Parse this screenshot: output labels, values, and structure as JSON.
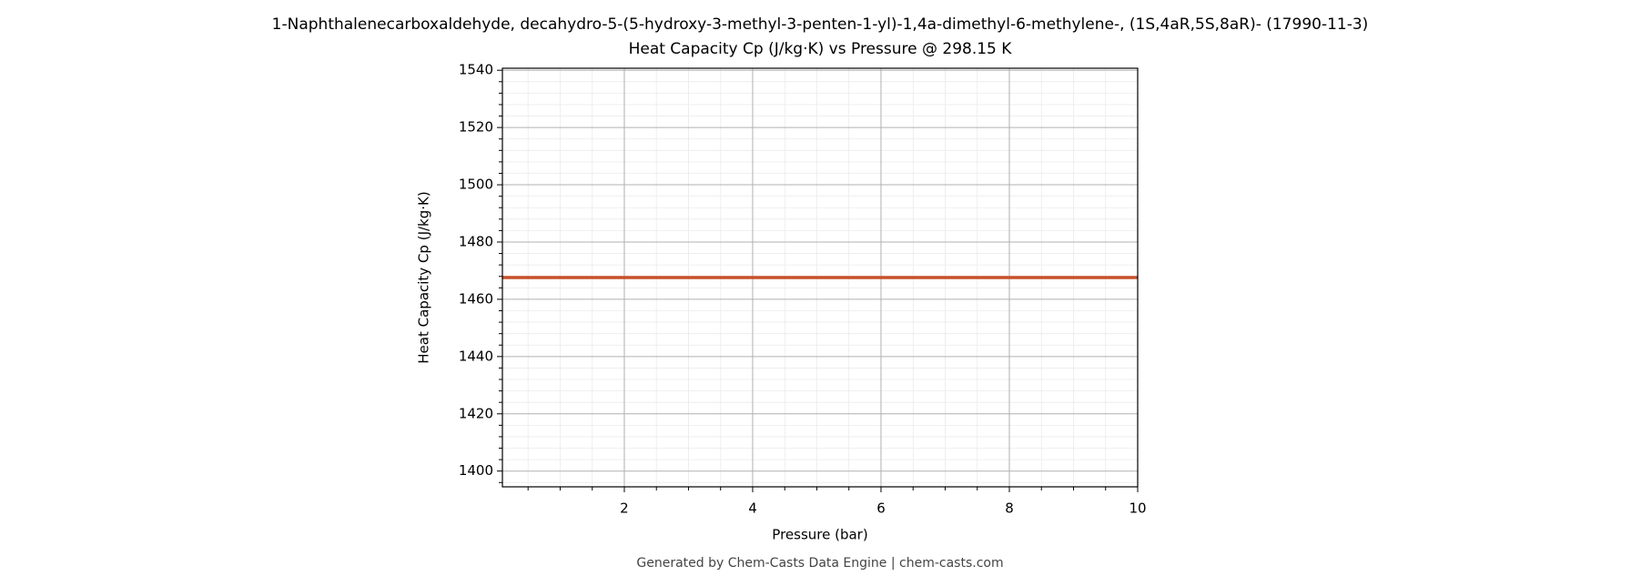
{
  "chart_data": {
    "type": "line",
    "title": "1-Naphthalenecarboxaldehyde, decahydro-5-(5-hydroxy-3-methyl-3-penten-1-yl)-1,4a-dimethyl-6-methylene-, (1S,4aR,5S,8aR)- (17990-11-3)",
    "subtitle": "Heat Capacity Cp (J/kg·K) vs Pressure @ 298.15 K",
    "x_label": "Pressure (bar)",
    "y_label": "Heat Capacity Cp (J/kg·K)",
    "footer": "Generated by Chem-Casts Data Engine | chem-casts.com",
    "x": [
      0.1,
      10
    ],
    "series": [
      {
        "name": "Cp",
        "color": "#c8502a",
        "values": [
          1467.6,
          1467.6
        ]
      }
    ],
    "xlim": [
      0.1,
      10
    ],
    "ylim": [
      1394.5,
      1540.7
    ],
    "xticks": [
      2,
      4,
      6,
      8,
      10
    ],
    "yticks": [
      1400,
      1420,
      1440,
      1460,
      1480,
      1500,
      1520,
      1540
    ],
    "xminor": [
      0.5,
      1,
      1.5,
      2.5,
      3,
      3.5,
      4.5,
      5,
      5.5,
      6.5,
      7,
      7.5,
      8.5,
      9,
      9.5
    ],
    "yminor": [
      1396,
      1404,
      1408,
      1412,
      1416,
      1424,
      1428,
      1432,
      1436,
      1444,
      1448,
      1452,
      1456,
      1464,
      1468,
      1472,
      1476,
      1484,
      1488,
      1492,
      1496,
      1504,
      1508,
      1512,
      1516,
      1524,
      1528,
      1532,
      1536
    ],
    "grid": true
  }
}
